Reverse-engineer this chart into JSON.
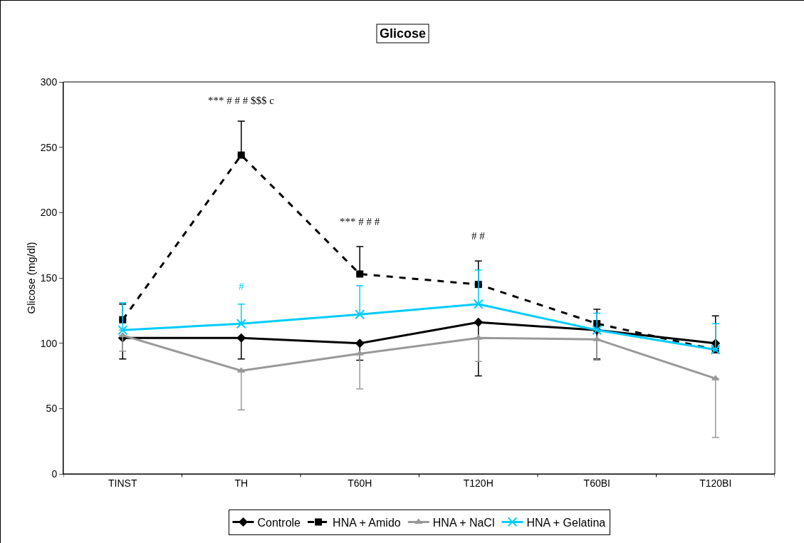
{
  "chart_data": {
    "type": "line",
    "title": "Glicose",
    "ylabel": "Glicose (mg/dl)",
    "categories": [
      "TINST",
      "TH",
      "T60H",
      "T120H",
      "T60BI",
      "T120BI"
    ],
    "ylim": [
      0,
      300
    ],
    "yticks": [
      0,
      50,
      100,
      150,
      200,
      250,
      300
    ],
    "grid": false,
    "legend": "bottom",
    "series": [
      {
        "name": "Controle",
        "color": "#000000",
        "marker": "diamond",
        "line_style": "solid",
        "values": [
          104,
          104,
          100,
          116,
          110,
          100
        ],
        "errors": [
          [
            88,
            104
          ],
          [
            88,
            104
          ],
          [
            87,
            100
          ],
          [
            75,
            116
          ],
          [
            88,
            110
          ],
          null
        ]
      },
      {
        "name": "HNA + Amido",
        "color": "#000000",
        "marker": "square",
        "line_style": "dashed",
        "values": [
          118,
          244,
          153,
          145,
          115,
          95
        ],
        "errors": [
          [
            118,
            130
          ],
          [
            244,
            270
          ],
          [
            153,
            174
          ],
          [
            145,
            163
          ],
          [
            115,
            126
          ],
          [
            95,
            121
          ]
        ]
      },
      {
        "name": "HNA + NaCl",
        "color": "#999999",
        "marker": "triangle",
        "line_style": "solid",
        "values": [
          106,
          79,
          92,
          104,
          103,
          73
        ],
        "errors": [
          [
            94,
            106
          ],
          [
            49,
            79
          ],
          [
            65,
            92
          ],
          [
            86,
            104
          ],
          [
            87,
            103
          ],
          [
            28,
            73
          ]
        ]
      },
      {
        "name": "HNA + Gelatina",
        "color": "#00ccff",
        "marker": "cross",
        "line_style": "solid",
        "values": [
          110,
          115,
          122,
          130,
          110,
          95
        ],
        "errors": [
          [
            110,
            131
          ],
          [
            115,
            130
          ],
          [
            122,
            144
          ],
          [
            130,
            156
          ],
          [
            110,
            123
          ],
          [
            95,
            115
          ]
        ]
      }
    ],
    "annotations": [
      "*** # # # $$$ c",
      "#",
      "*** # # #",
      "# #"
    ]
  }
}
